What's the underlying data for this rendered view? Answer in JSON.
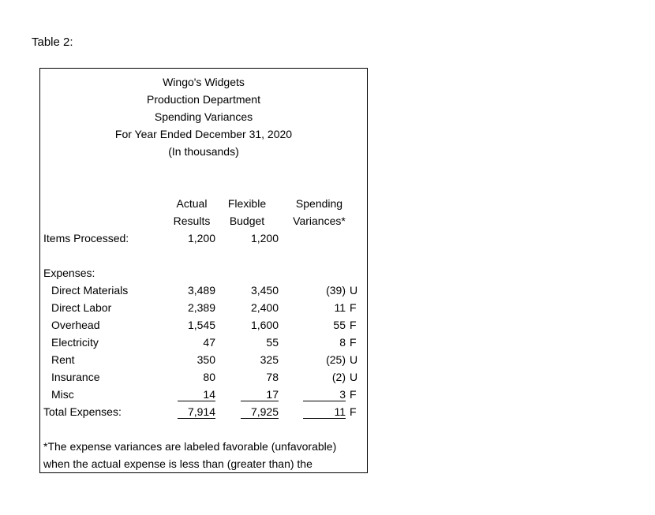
{
  "page": {
    "label": "Table 2:"
  },
  "table": {
    "title_lines": [
      "Wingo's Widgets",
      "Production Department",
      "Spending Variances",
      "For Year Ended December 31, 2020",
      "(In thousands)"
    ],
    "columns": {
      "actual": [
        "Actual",
        "Results"
      ],
      "flexible": [
        "Flexible",
        "Budget"
      ],
      "variance": [
        "Spending",
        "Variances*"
      ]
    },
    "items_processed": {
      "label": "Items Processed:",
      "actual": "1,200",
      "flexible": "1,200"
    },
    "expenses_header": "Expenses:",
    "expenses": [
      {
        "name": "Direct Materials",
        "actual": "3,489",
        "flexible": "3,450",
        "variance": "(39)",
        "flag": "U"
      },
      {
        "name": "Direct Labor",
        "actual": "2,389",
        "flexible": "2,400",
        "variance": "11",
        "flag": "F"
      },
      {
        "name": "Overhead",
        "actual": "1,545",
        "flexible": "1,600",
        "variance": "55",
        "flag": "F"
      },
      {
        "name": "Electricity",
        "actual": "47",
        "flexible": "55",
        "variance": "8",
        "flag": "F"
      },
      {
        "name": "Rent",
        "actual": "350",
        "flexible": "325",
        "variance": "(25)",
        "flag": "U"
      },
      {
        "name": "Insurance",
        "actual": "80",
        "flexible": "78",
        "variance": "(2)",
        "flag": "U"
      },
      {
        "name": "Misc",
        "actual": "14",
        "flexible": "17",
        "variance": "3",
        "flag": "F"
      }
    ],
    "total": {
      "label": "Total Expenses:",
      "actual": "7,914",
      "flexible": "7,925",
      "variance": "11",
      "flag": "F"
    },
    "footnote_lines": [
      "*The expense variances are labeled favorable (unfavorable)",
      "when the actual expense is less than (greater than) the"
    ]
  }
}
